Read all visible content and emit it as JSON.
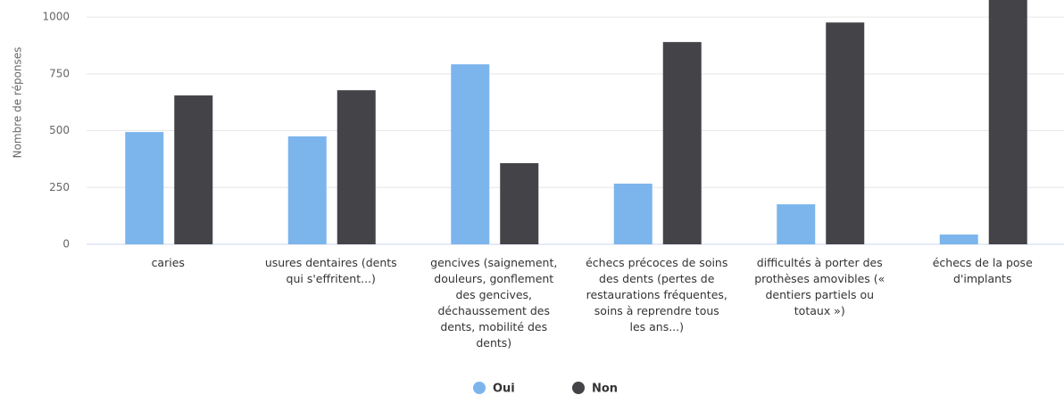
{
  "chart_data": {
    "type": "bar",
    "y_label": "Nombre de réponses",
    "categories": [
      "caries",
      "usures dentaires (dents qui s'effritent...)",
      "gencives (saignement, douleurs, gonflement des gencives, déchaussement des dents, mobilité des dents)",
      "échecs précoces de soins des dents (pertes de restaurations fréquentes, soins à reprendre tous les ans...)",
      "difficultés à porter des prothèses amovibles (« dentiers partiels ou totaux »)",
      "échecs de la pose d'implants"
    ],
    "series": [
      {
        "name": "Oui",
        "color": "#7cb5ec",
        "values": [
          494,
          475,
          792,
          267,
          176,
          43
        ]
      },
      {
        "name": "Non",
        "color": "#434348",
        "values": [
          655,
          678,
          357,
          890,
          976,
          1100
        ]
      }
    ],
    "ylim": [
      0,
      1075
    ],
    "yticks": [
      0,
      250,
      500,
      750,
      1000
    ],
    "grid": true
  }
}
